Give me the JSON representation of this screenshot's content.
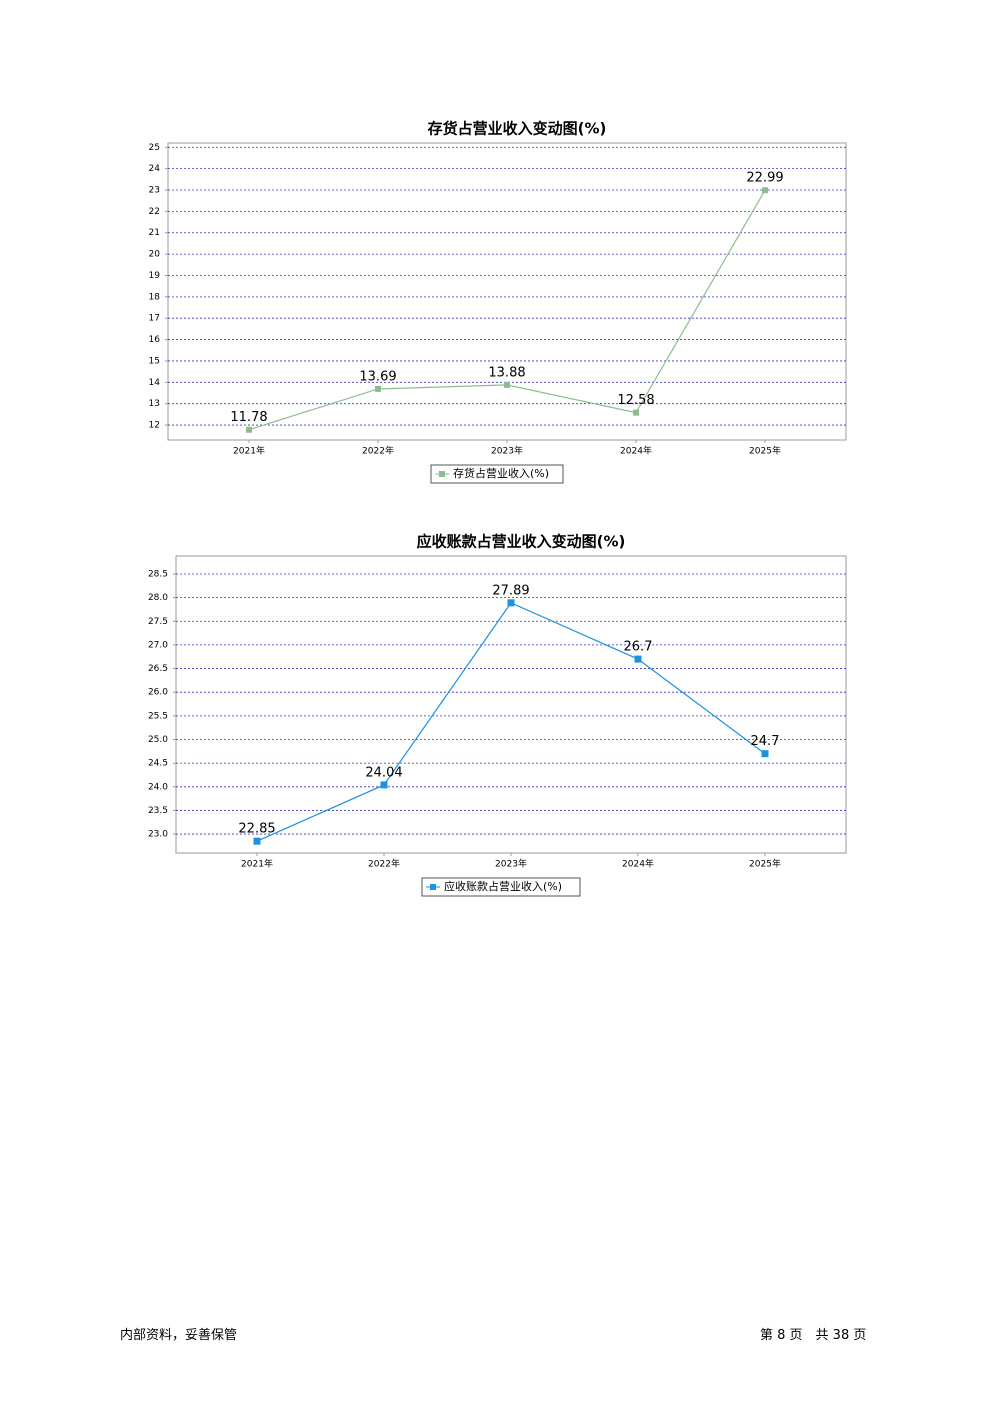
{
  "chart_data": [
    {
      "type": "line",
      "title": "存货占营业收入变动图(%)",
      "categories": [
        "2021年",
        "2022年",
        "2023年",
        "2024年",
        "2025年"
      ],
      "series": [
        {
          "name": "存货占营业收入(%)",
          "color": "#8fbc8f",
          "values": [
            11.78,
            13.69,
            13.88,
            12.58,
            22.99
          ]
        }
      ],
      "ylim": [
        11.3,
        25.2
      ],
      "yticks": [
        12,
        13,
        14,
        15,
        16,
        17,
        18,
        19,
        20,
        21,
        22,
        23,
        24,
        25
      ],
      "grid": true
    },
    {
      "type": "line",
      "title": "应收账款占营业收入变动图(%)",
      "categories": [
        "2021年",
        "2022年",
        "2023年",
        "2024年",
        "2025年"
      ],
      "series": [
        {
          "name": "应收账款占营业收入(%)",
          "color": "#1e90e0",
          "values": [
            22.85,
            24.04,
            27.89,
            26.7,
            24.7
          ]
        }
      ],
      "ylim": [
        22.6,
        28.88
      ],
      "yticks": [
        {
          "value": 23,
          "label": "23.0"
        },
        23.5,
        {
          "value": 24,
          "label": "24.0"
        },
        24.5,
        {
          "value": 25,
          "label": "25.0"
        },
        25.5,
        {
          "value": 26,
          "label": "26.0"
        },
        26.5,
        {
          "value": 27,
          "label": "27.0"
        },
        27.5,
        {
          "value": 28,
          "label": "28.0"
        },
        28.5
      ],
      "grid": true
    }
  ],
  "footer": {
    "left": "内部资料，妥善保管",
    "right": "第 8 页　共 38 页"
  }
}
